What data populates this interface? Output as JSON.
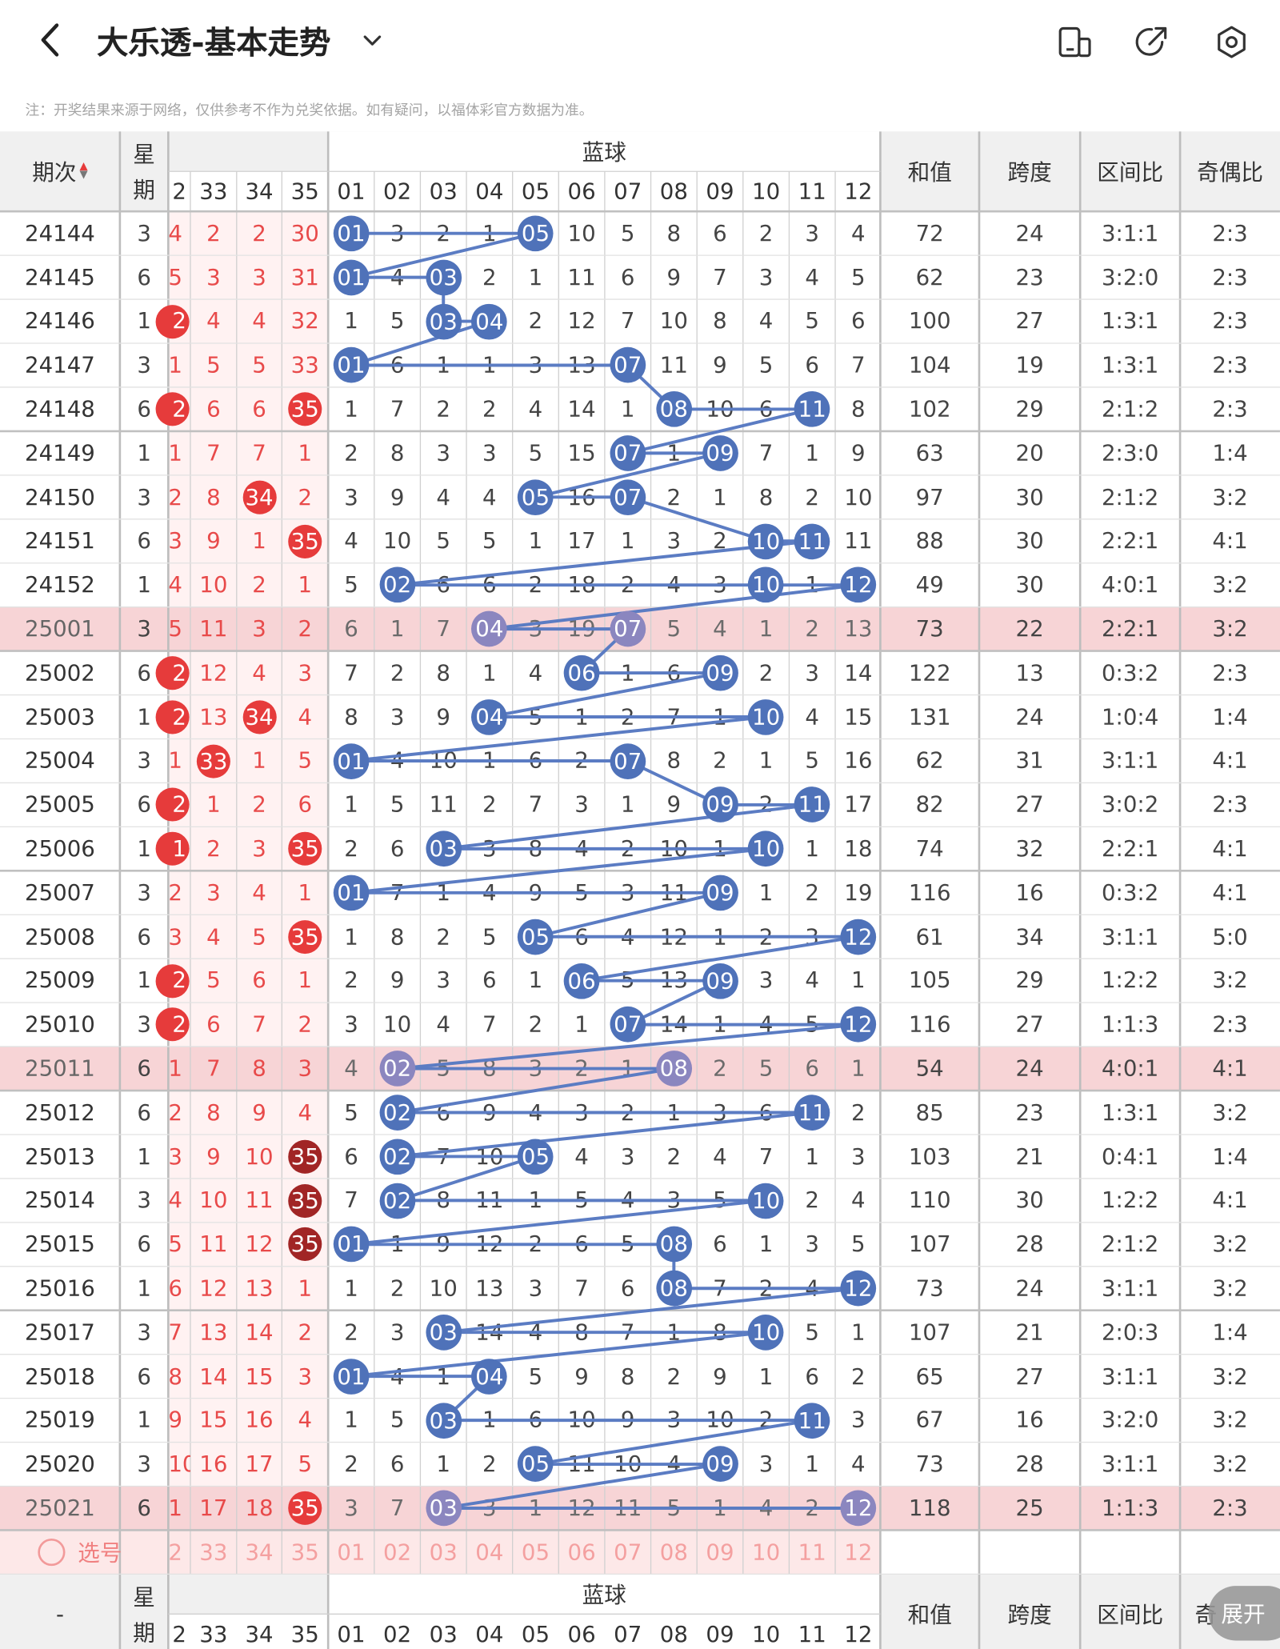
{
  "header": {
    "title": "大乐透-基本走势",
    "back_icon": "chevron-left-icon",
    "dropdown_icon": "chevron-down-icon",
    "toolbar_icons": [
      "layout-toggle-icon",
      "share-icon",
      "settings-icon"
    ]
  },
  "note": "注：开奖结果来源于网络，仅供参考不作为兑奖依据。如有疑问，以福体彩官方数据为准。",
  "columns": {
    "period": "期次",
    "week_1": "星",
    "week_2": "期",
    "blue_ball": "蓝球",
    "sum": "和值",
    "span": "跨度",
    "zone_ratio": "区间比",
    "odd_even": "奇偶比"
  },
  "red_columns": [
    "2",
    "33",
    "34",
    "35"
  ],
  "blue_columns": [
    "01",
    "02",
    "03",
    "04",
    "05",
    "06",
    "07",
    "08",
    "09",
    "10",
    "11",
    "12"
  ],
  "rows": [
    {
      "p": "24144",
      "w": "3",
      "r": [
        "4",
        "2",
        "2",
        "30"
      ],
      "rh": [],
      "b": [
        "01",
        "3",
        "2",
        "1",
        "05",
        "10",
        "5",
        "8",
        "6",
        "2",
        "3",
        "4"
      ],
      "s": "72",
      "sp": "24",
      "z": "3:1:1",
      "o": "2:3"
    },
    {
      "p": "24145",
      "w": "6",
      "r": [
        "5",
        "3",
        "3",
        "31"
      ],
      "rh": [],
      "b": [
        "01",
        "4",
        "03",
        "2",
        "1",
        "11",
        "6",
        "9",
        "7",
        "3",
        "4",
        "5"
      ],
      "s": "62",
      "sp": "23",
      "z": "3:2:0",
      "o": "2:3"
    },
    {
      "p": "24146",
      "w": "1",
      "r": [
        "2",
        "4",
        "4",
        "32"
      ],
      "rh": [
        0
      ],
      "b": [
        "1",
        "5",
        "03",
        "04",
        "2",
        "12",
        "7",
        "10",
        "8",
        "4",
        "5",
        "6"
      ],
      "s": "100",
      "sp": "27",
      "z": "1:3:1",
      "o": "2:3"
    },
    {
      "p": "24147",
      "w": "3",
      "r": [
        "1",
        "5",
        "5",
        "33"
      ],
      "rh": [],
      "b": [
        "01",
        "6",
        "1",
        "1",
        "3",
        "13",
        "07",
        "11",
        "9",
        "5",
        "6",
        "7"
      ],
      "s": "104",
      "sp": "19",
      "z": "1:3:1",
      "o": "2:3"
    },
    {
      "p": "24148",
      "w": "6",
      "r": [
        "2",
        "6",
        "6",
        "35"
      ],
      "rh": [
        0,
        3
      ],
      "b": [
        "1",
        "7",
        "2",
        "2",
        "4",
        "14",
        "1",
        "08",
        "10",
        "6",
        "11",
        "8"
      ],
      "s": "102",
      "sp": "29",
      "z": "2:1:2",
      "o": "2:3"
    },
    {
      "p": "24149",
      "w": "1",
      "r": [
        "1",
        "7",
        "7",
        "1"
      ],
      "rh": [],
      "b": [
        "2",
        "8",
        "3",
        "3",
        "5",
        "15",
        "07",
        "1",
        "09",
        "7",
        "1",
        "9"
      ],
      "s": "63",
      "sp": "20",
      "z": "2:3:0",
      "o": "1:4"
    },
    {
      "p": "24150",
      "w": "3",
      "r": [
        "2",
        "8",
        "34",
        "2"
      ],
      "rh": [
        2
      ],
      "b": [
        "3",
        "9",
        "4",
        "4",
        "05",
        "16",
        "07",
        "2",
        "1",
        "8",
        "2",
        "10"
      ],
      "s": "97",
      "sp": "30",
      "z": "2:1:2",
      "o": "3:2"
    },
    {
      "p": "24151",
      "w": "6",
      "r": [
        "3",
        "9",
        "1",
        "35"
      ],
      "rh": [
        3
      ],
      "b": [
        "4",
        "10",
        "5",
        "5",
        "1",
        "17",
        "1",
        "3",
        "2",
        "10",
        "11",
        "11"
      ],
      "s": "88",
      "sp": "30",
      "z": "2:2:1",
      "o": "4:1"
    },
    {
      "p": "24152",
      "w": "1",
      "r": [
        "4",
        "10",
        "2",
        "1"
      ],
      "rh": [],
      "b": [
        "5",
        "02",
        "6",
        "6",
        "2",
        "18",
        "2",
        "4",
        "3",
        "10",
        "1",
        "12"
      ],
      "s": "49",
      "sp": "30",
      "z": "4:0:1",
      "o": "3:2"
    },
    {
      "p": "25001",
      "w": "3",
      "r": [
        "5",
        "11",
        "3",
        "2"
      ],
      "rh": [],
      "b": [
        "6",
        "1",
        "7",
        "04",
        "3",
        "19",
        "07",
        "5",
        "4",
        "1",
        "2",
        "13"
      ],
      "s": "73",
      "sp": "22",
      "z": "2:2:1",
      "o": "3:2",
      "hl": true
    },
    {
      "p": "25002",
      "w": "6",
      "r": [
        "2",
        "12",
        "4",
        "3"
      ],
      "rh": [
        0
      ],
      "b": [
        "7",
        "2",
        "8",
        "1",
        "4",
        "06",
        "1",
        "6",
        "09",
        "2",
        "3",
        "14"
      ],
      "s": "122",
      "sp": "13",
      "z": "0:3:2",
      "o": "2:3"
    },
    {
      "p": "25003",
      "w": "1",
      "r": [
        "2",
        "13",
        "34",
        "4"
      ],
      "rh": [
        0,
        2
      ],
      "b": [
        "8",
        "3",
        "9",
        "04",
        "5",
        "1",
        "2",
        "7",
        "1",
        "10",
        "4",
        "15"
      ],
      "s": "131",
      "sp": "24",
      "z": "1:0:4",
      "o": "1:4"
    },
    {
      "p": "25004",
      "w": "3",
      "r": [
        "1",
        "33",
        "1",
        "5"
      ],
      "rh": [
        1
      ],
      "b": [
        "01",
        "4",
        "10",
        "1",
        "6",
        "2",
        "07",
        "8",
        "2",
        "1",
        "5",
        "16"
      ],
      "s": "62",
      "sp": "31",
      "z": "3:1:1",
      "o": "4:1"
    },
    {
      "p": "25005",
      "w": "6",
      "r": [
        "2",
        "1",
        "2",
        "6"
      ],
      "rh": [
        0
      ],
      "b": [
        "1",
        "5",
        "11",
        "2",
        "7",
        "3",
        "1",
        "9",
        "09",
        "2",
        "11",
        "17"
      ],
      "s": "82",
      "sp": "27",
      "z": "3:0:2",
      "o": "2:3"
    },
    {
      "p": "25006",
      "w": "1",
      "r": [
        "1",
        "2",
        "3",
        "35"
      ],
      "rh": [
        0,
        3
      ],
      "b": [
        "2",
        "6",
        "03",
        "3",
        "8",
        "4",
        "2",
        "10",
        "1",
        "10",
        "1",
        "18"
      ],
      "s": "74",
      "sp": "32",
      "z": "2:2:1",
      "o": "4:1"
    },
    {
      "p": "25007",
      "w": "3",
      "r": [
        "2",
        "3",
        "4",
        "1"
      ],
      "rh": [],
      "b": [
        "01",
        "7",
        "1",
        "4",
        "9",
        "5",
        "3",
        "11",
        "09",
        "1",
        "2",
        "19"
      ],
      "s": "116",
      "sp": "16",
      "z": "0:3:2",
      "o": "4:1"
    },
    {
      "p": "25008",
      "w": "6",
      "r": [
        "3",
        "4",
        "5",
        "35"
      ],
      "rh": [
        3
      ],
      "b": [
        "1",
        "8",
        "2",
        "5",
        "05",
        "6",
        "4",
        "12",
        "1",
        "2",
        "3",
        "12"
      ],
      "s": "61",
      "sp": "34",
      "z": "3:1:1",
      "o": "5:0"
    },
    {
      "p": "25009",
      "w": "1",
      "r": [
        "2",
        "5",
        "6",
        "1"
      ],
      "rh": [
        0
      ],
      "b": [
        "2",
        "9",
        "3",
        "6",
        "1",
        "06",
        "5",
        "13",
        "09",
        "3",
        "4",
        "1"
      ],
      "s": "105",
      "sp": "29",
      "z": "1:2:2",
      "o": "3:2"
    },
    {
      "p": "25010",
      "w": "3",
      "r": [
        "2",
        "6",
        "7",
        "2"
      ],
      "rh": [
        0
      ],
      "b": [
        "3",
        "10",
        "4",
        "7",
        "2",
        "1",
        "07",
        "14",
        "1",
        "4",
        "5",
        "12"
      ],
      "s": "116",
      "sp": "27",
      "z": "1:1:3",
      "o": "2:3"
    },
    {
      "p": "25011",
      "w": "6",
      "r": [
        "1",
        "7",
        "8",
        "3"
      ],
      "rh": [],
      "b": [
        "4",
        "02",
        "5",
        "8",
        "3",
        "2",
        "1",
        "08",
        "2",
        "5",
        "6",
        "1"
      ],
      "s": "54",
      "sp": "24",
      "z": "4:0:1",
      "o": "4:1",
      "hl": true
    },
    {
      "p": "25012",
      "w": "6",
      "r": [
        "2",
        "8",
        "9",
        "4"
      ],
      "rh": [],
      "b": [
        "5",
        "02",
        "6",
        "9",
        "4",
        "3",
        "2",
        "1",
        "3",
        "6",
        "11",
        "2"
      ],
      "s": "85",
      "sp": "23",
      "z": "1:3:1",
      "o": "3:2"
    },
    {
      "p": "25013",
      "w": "1",
      "r": [
        "3",
        "9",
        "10",
        "35"
      ],
      "rh": [
        3
      ],
      "b": [
        "6",
        "02",
        "7",
        "10",
        "05",
        "4",
        "3",
        "2",
        "4",
        "7",
        "1",
        "3"
      ],
      "s": "103",
      "sp": "21",
      "z": "0:4:1",
      "o": "1:4"
    },
    {
      "p": "25014",
      "w": "3",
      "r": [
        "4",
        "10",
        "11",
        "35"
      ],
      "rh": [
        3
      ],
      "b": [
        "7",
        "02",
        "8",
        "11",
        "1",
        "5",
        "4",
        "3",
        "5",
        "10",
        "2",
        "4"
      ],
      "s": "110",
      "sp": "30",
      "z": "1:2:2",
      "o": "4:1"
    },
    {
      "p": "25015",
      "w": "6",
      "r": [
        "5",
        "11",
        "12",
        "35"
      ],
      "rh": [
        3
      ],
      "b": [
        "01",
        "1",
        "9",
        "12",
        "2",
        "6",
        "5",
        "08",
        "6",
        "1",
        "3",
        "5"
      ],
      "s": "107",
      "sp": "28",
      "z": "2:1:2",
      "o": "3:2"
    },
    {
      "p": "25016",
      "w": "1",
      "r": [
        "6",
        "12",
        "13",
        "1"
      ],
      "rh": [],
      "b": [
        "1",
        "2",
        "10",
        "13",
        "3",
        "7",
        "6",
        "08",
        "7",
        "2",
        "4",
        "12"
      ],
      "s": "73",
      "sp": "24",
      "z": "3:1:1",
      "o": "3:2"
    },
    {
      "p": "25017",
      "w": "3",
      "r": [
        "7",
        "13",
        "14",
        "2"
      ],
      "rh": [],
      "b": [
        "2",
        "3",
        "03",
        "14",
        "4",
        "8",
        "7",
        "1",
        "8",
        "10",
        "5",
        "1"
      ],
      "s": "107",
      "sp": "21",
      "z": "2:0:3",
      "o": "1:4"
    },
    {
      "p": "25018",
      "w": "6",
      "r": [
        "8",
        "14",
        "15",
        "3"
      ],
      "rh": [],
      "b": [
        "01",
        "4",
        "1",
        "04",
        "5",
        "9",
        "8",
        "2",
        "9",
        "1",
        "6",
        "2"
      ],
      "s": "65",
      "sp": "27",
      "z": "3:1:1",
      "o": "3:2"
    },
    {
      "p": "25019",
      "w": "1",
      "r": [
        "9",
        "15",
        "16",
        "4"
      ],
      "rh": [],
      "b": [
        "1",
        "5",
        "03",
        "1",
        "6",
        "10",
        "9",
        "3",
        "10",
        "2",
        "11",
        "3"
      ],
      "s": "67",
      "sp": "16",
      "z": "3:2:0",
      "o": "3:2"
    },
    {
      "p": "25020",
      "w": "3",
      "r": [
        "10",
        "16",
        "17",
        "5"
      ],
      "rh": [],
      "b": [
        "2",
        "6",
        "1",
        "2",
        "05",
        "11",
        "10",
        "4",
        "09",
        "3",
        "1",
        "4"
      ],
      "s": "73",
      "sp": "28",
      "z": "3:1:1",
      "o": "3:2"
    },
    {
      "p": "25021",
      "w": "6",
      "r": [
        "1",
        "17",
        "18",
        "35"
      ],
      "rh": [
        3
      ],
      "b": [
        "3",
        "7",
        "03",
        "3",
        "1",
        "12",
        "11",
        "5",
        "1",
        "4",
        "2",
        "12"
      ],
      "s": "118",
      "sp": "25",
      "z": "1:1:3",
      "o": "2:3",
      "hl": true
    }
  ],
  "select_row": {
    "label": "选号",
    "red": [
      "2",
      "33",
      "34",
      "35"
    ],
    "blue": [
      "01",
      "02",
      "03",
      "04",
      "05",
      "06",
      "07",
      "08",
      "09",
      "10",
      "11",
      "12"
    ]
  },
  "footer": {
    "period": "-",
    "week_1": "星",
    "week_2": "期",
    "blue_ball": "蓝球",
    "sum": "和值",
    "span": "跨度",
    "zone_ratio": "区间比",
    "odd_even": "奇",
    "expand": "展开"
  },
  "colors": {
    "blue_ball": "#4f72b9",
    "blue_line": "#5b7cc3",
    "red_ball": "#e63b3b",
    "dark_red_ball": "#a12525",
    "highlight_row": "#f7d4d6",
    "select_row": "#fde8e8",
    "grid": "#d0d0d0"
  }
}
